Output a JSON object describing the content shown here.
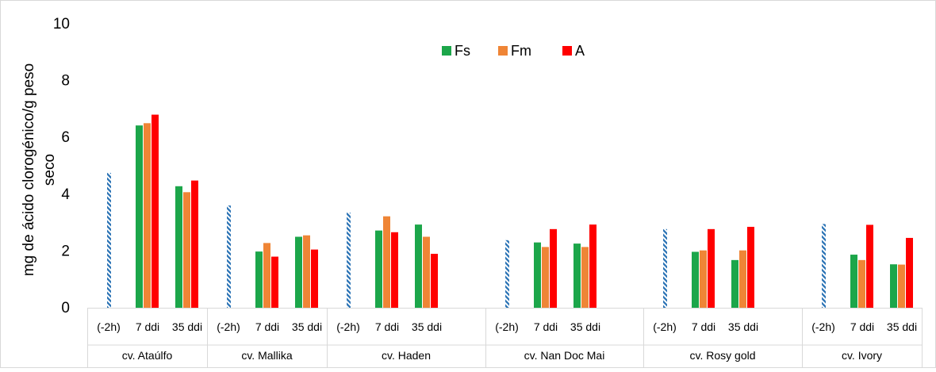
{
  "chart_data": {
    "type": "bar",
    "ylabel": "mg de ácido clorogénico/g peso seco",
    "ylim": [
      0,
      10
    ],
    "yticks": [
      "0",
      "2",
      "4",
      "6",
      "8",
      "10"
    ],
    "grid": false,
    "legend_position": "top-center",
    "cultivars": [
      {
        "name": "cv. Ataúlfo",
        "baseline": 4.75,
        "times": [
          "(-2h)",
          "7 ddi",
          "35 ddi"
        ],
        "values": {
          "Fs": [
            6.42,
            4.28
          ],
          "Fm": [
            6.5,
            4.07
          ],
          "A": [
            6.8,
            4.48
          ]
        }
      },
      {
        "name": "cv. Mallika",
        "baseline": 3.6,
        "times": [
          "(-2h)",
          "7 ddi",
          "35 ddi"
        ],
        "values": {
          "Fs": [
            1.98,
            2.5
          ],
          "Fm": [
            2.28,
            2.55
          ],
          "A": [
            1.8,
            2.05
          ]
        }
      },
      {
        "name": "cv. Haden",
        "baseline": 3.35,
        "times": [
          "(-2h)",
          "7 ddi",
          "35 ddi"
        ],
        "values": {
          "Fs": [
            2.72,
            2.93
          ],
          "Fm": [
            3.22,
            2.5
          ],
          "A": [
            2.66,
            1.9
          ]
        }
      },
      {
        "name": "cv. Nan Doc Mai",
        "baseline": 2.38,
        "times": [
          "(-2h)",
          "7 ddi",
          "35 ddi"
        ],
        "values": {
          "Fs": [
            2.3,
            2.26
          ],
          "Fm": [
            2.14,
            2.14
          ],
          "A": [
            2.77,
            2.93
          ]
        }
      },
      {
        "name": "cv. Rosy gold",
        "baseline": 2.77,
        "times": [
          "(-2h)",
          "7 ddi",
          "35 ddi"
        ],
        "values": {
          "Fs": [
            1.97,
            1.68
          ],
          "Fm": [
            2.02,
            2.02
          ],
          "A": [
            2.77,
            2.85
          ]
        }
      },
      {
        "name": "cv. Ivory",
        "baseline": 2.95,
        "times": [
          "(-2h)",
          "7 ddi",
          "35 ddi"
        ],
        "values": {
          "Fs": [
            1.87,
            1.53
          ],
          "Fm": [
            1.68,
            1.52
          ],
          "A": [
            2.92,
            2.46
          ]
        }
      }
    ],
    "series": [
      {
        "name": "Fs",
        "color": "#1ca64a"
      },
      {
        "name": "Fm",
        "color": "#ef8536"
      },
      {
        "name": "A",
        "color": "#ff0000"
      }
    ],
    "baseline_color": "#2e75b6"
  }
}
